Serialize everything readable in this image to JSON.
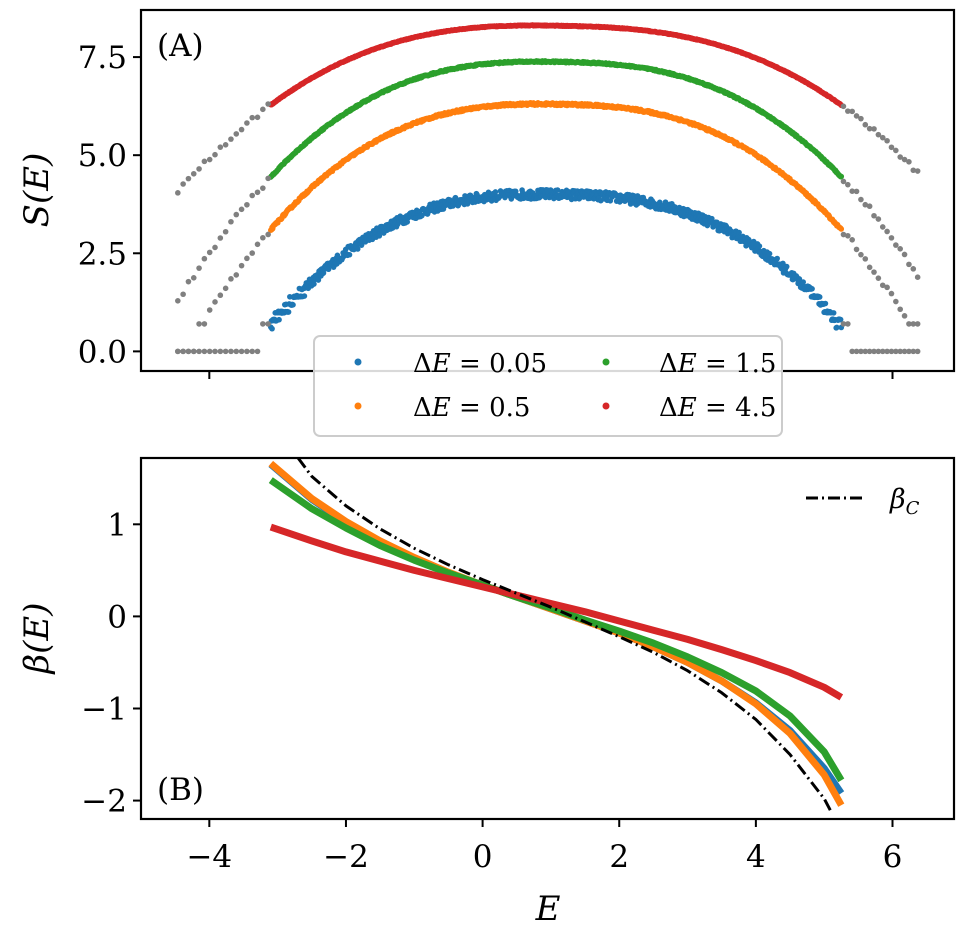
{
  "chart_data": [
    {
      "type": "scatter",
      "panel_label": "(A)",
      "xlabel": "",
      "ylabel": "S(E)",
      "xlim": [
        -5.0,
        6.9
      ],
      "ylim": [
        -0.5,
        8.7
      ],
      "yticks": [
        0.0,
        2.5,
        5.0,
        7.5
      ],
      "ytick_labels": [
        "0.0",
        "2.5",
        "5.0",
        "7.5"
      ],
      "xticks": [
        -4,
        6
      ],
      "fit_range": [
        -3.1,
        5.25
      ],
      "full_range": [
        -4.5,
        6.4
      ],
      "gray_color": "#808080",
      "legend_location": "lower center, two columns",
      "series": [
        {
          "name": "ΔE = 0.05",
          "delta": "0.05",
          "color": "#1f77b4",
          "peak": 4.0,
          "edge": 0.65,
          "noise": 0.12,
          "quantized": true
        },
        {
          "name": "ΔE = 0.5",
          "delta": "0.5",
          "color": "#ff7f0e",
          "peak": 6.3,
          "edge": 3.1,
          "noise": 0.03,
          "quantized": false
        },
        {
          "name": "ΔE = 1.5",
          "delta": "1.5",
          "color": "#2ca02c",
          "peak": 7.38,
          "edge": 4.45,
          "noise": 0.02,
          "quantized": false
        },
        {
          "name": "ΔE = 4.5",
          "delta": "4.5",
          "color": "#d62728",
          "peak": 8.3,
          "edge": 6.28,
          "noise": 0.01,
          "quantized": false
        }
      ]
    },
    {
      "type": "line",
      "panel_label": "(B)",
      "xlabel": "E",
      "ylabel": "β(E)",
      "xlim": [
        -5.0,
        6.9
      ],
      "ylim": [
        -2.2,
        1.72
      ],
      "xticks": [
        -4,
        -2,
        0,
        2,
        4,
        6
      ],
      "xtick_labels": [
        "−4",
        "−2",
        "0",
        "2",
        "4",
        "6"
      ],
      "yticks": [
        1,
        0,
        -1,
        -2
      ],
      "ytick_labels": [
        "1",
        "0",
        "−1",
        "−2"
      ],
      "legend": {
        "label": "β",
        "subscript": "C",
        "style": "dash-dot",
        "color": "#000000",
        "location": "upper right"
      },
      "series": [
        {
          "name": "ΔE = 0.05",
          "color": "#1f77b4",
          "x": [
            -3.1,
            -2.5,
            -2.0,
            -1.5,
            -1.0,
            -0.5,
            0.0,
            0.5,
            1.0,
            1.5,
            2.0,
            2.5,
            3.0,
            3.5,
            4.0,
            4.5,
            5.0,
            5.25
          ],
          "y": [
            1.65,
            1.27,
            1.02,
            0.81,
            0.63,
            0.47,
            0.34,
            0.21,
            0.08,
            -0.05,
            -0.18,
            -0.33,
            -0.5,
            -0.7,
            -0.94,
            -1.24,
            -1.65,
            -1.92
          ]
        },
        {
          "name": "ΔE = 0.5",
          "color": "#ff7f0e",
          "x": [
            -3.1,
            -2.5,
            -2.0,
            -1.5,
            -1.0,
            -0.5,
            0.0,
            0.5,
            1.0,
            1.5,
            2.0,
            2.5,
            3.0,
            3.5,
            4.0,
            4.5,
            5.0,
            5.25
          ],
          "y": [
            1.66,
            1.28,
            1.03,
            0.82,
            0.64,
            0.48,
            0.34,
            0.21,
            0.08,
            -0.05,
            -0.18,
            -0.33,
            -0.5,
            -0.7,
            -0.95,
            -1.27,
            -1.72,
            -2.05
          ]
        },
        {
          "name": "ΔE = 1.5",
          "color": "#2ca02c",
          "x": [
            -3.1,
            -2.5,
            -2.0,
            -1.5,
            -1.0,
            -0.5,
            0.0,
            0.5,
            1.0,
            1.5,
            2.0,
            2.5,
            3.0,
            3.5,
            4.0,
            4.5,
            5.0,
            5.25
          ],
          "y": [
            1.48,
            1.17,
            0.96,
            0.77,
            0.61,
            0.47,
            0.34,
            0.21,
            0.09,
            -0.04,
            -0.16,
            -0.29,
            -0.44,
            -0.61,
            -0.81,
            -1.08,
            -1.47,
            -1.78
          ]
        },
        {
          "name": "ΔE = 4.5",
          "color": "#d62728",
          "x": [
            -3.1,
            -2.5,
            -2.0,
            -1.5,
            -1.0,
            -0.5,
            0.0,
            0.5,
            1.0,
            1.5,
            2.0,
            2.5,
            3.0,
            3.5,
            4.0,
            4.5,
            5.0,
            5.25
          ],
          "y": [
            0.97,
            0.82,
            0.7,
            0.6,
            0.5,
            0.41,
            0.32,
            0.23,
            0.14,
            0.05,
            -0.05,
            -0.15,
            -0.25,
            -0.36,
            -0.48,
            -0.61,
            -0.77,
            -0.88
          ]
        },
        {
          "name": "βC",
          "color": "#000000",
          "dash": true,
          "x": [
            -2.7,
            -2.5,
            -2.0,
            -1.5,
            -1.0,
            -0.5,
            0.0,
            0.5,
            1.0,
            1.5,
            2.0,
            2.5,
            3.0,
            3.5,
            4.0,
            4.5,
            5.0,
            5.1
          ],
          "y": [
            1.72,
            1.52,
            1.2,
            0.95,
            0.74,
            0.56,
            0.4,
            0.25,
            0.1,
            -0.06,
            -0.22,
            -0.39,
            -0.59,
            -0.83,
            -1.12,
            -1.5,
            -1.98,
            -2.12
          ]
        }
      ]
    }
  ]
}
